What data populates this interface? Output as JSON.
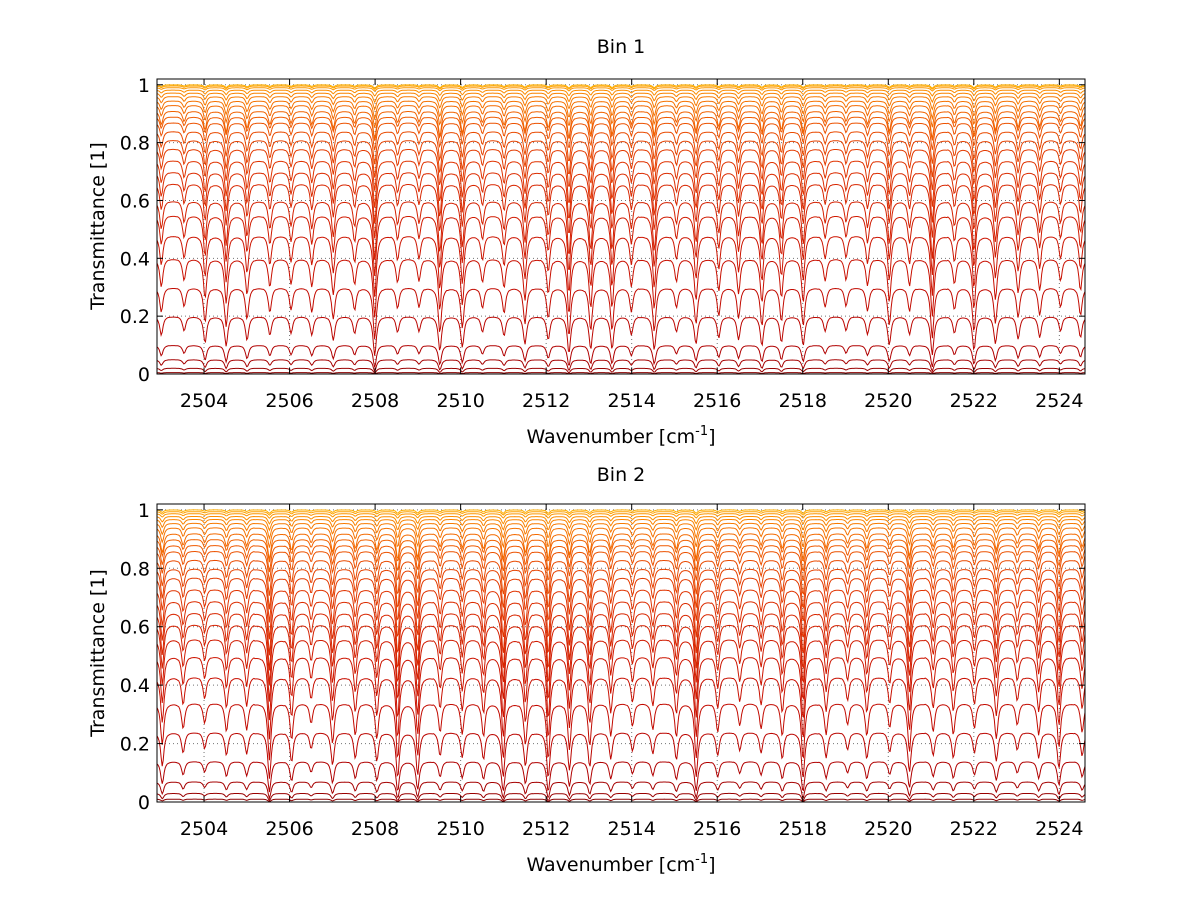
{
  "chart_data": [
    {
      "type": "line",
      "title": "Bin 1",
      "xlabel": "Wavenumber [cm",
      "xlabel_sup": "-1",
      "xlabel_suffix": "]",
      "ylabel": "Transmittance [1]",
      "xlim": [
        2502.9,
        2524.6
      ],
      "ylim": [
        0,
        1.02
      ],
      "xticks": [
        2504,
        2506,
        2508,
        2510,
        2512,
        2514,
        2516,
        2518,
        2520,
        2522,
        2524
      ],
      "yticks": [
        0,
        0.2,
        0.4,
        0.6,
        0.8,
        1
      ],
      "ytick_labels": [
        "0",
        "0.2",
        "0.4",
        "0.6",
        "0.8",
        "1"
      ],
      "grid": true,
      "line_spacing_cm-1": 0.5,
      "series_baselines": [
        0.0,
        0.005,
        0.02,
        0.05,
        0.1,
        0.2,
        0.3,
        0.4,
        0.48,
        0.55,
        0.6,
        0.66,
        0.7,
        0.74,
        0.78,
        0.81,
        0.84,
        0.87,
        0.89,
        0.91,
        0.93,
        0.945,
        0.96,
        0.972,
        0.982,
        0.99,
        0.996,
        1.0
      ],
      "series_colors": [
        "#7a0000",
        "#8a0000",
        "#990000",
        "#a50000",
        "#b00000",
        "#bb0500",
        "#c20a00",
        "#c80f00",
        "#cc1400",
        "#d01a00",
        "#d42000",
        "#d82600",
        "#dc2c00",
        "#e03300",
        "#e33a00",
        "#e64200",
        "#e94a00",
        "#ec5200",
        "#ef5a00",
        "#f16200",
        "#f36a00",
        "#f57200",
        "#f77a00",
        "#f98300",
        "#fb8c00",
        "#fc9600",
        "#fda200",
        "#fdae00"
      ]
    },
    {
      "type": "line",
      "title": "Bin 2",
      "xlabel": "Wavenumber [cm",
      "xlabel_sup": "-1",
      "xlabel_suffix": "]",
      "ylabel": "Transmittance [1]",
      "xlim": [
        2502.9,
        2524.6
      ],
      "ylim": [
        0,
        1.02
      ],
      "xticks": [
        2504,
        2506,
        2508,
        2510,
        2512,
        2514,
        2516,
        2518,
        2520,
        2522,
        2524
      ],
      "yticks": [
        0,
        0.2,
        0.4,
        0.6,
        0.8,
        1
      ],
      "ytick_labels": [
        "0",
        "0.2",
        "0.4",
        "0.6",
        "0.8",
        "1"
      ],
      "grid": true,
      "line_spacing_cm-1": 0.5,
      "series_baselines": [
        0.0,
        0.01,
        0.03,
        0.07,
        0.14,
        0.24,
        0.34,
        0.43,
        0.5,
        0.56,
        0.61,
        0.65,
        0.69,
        0.73,
        0.77,
        0.8,
        0.83,
        0.86,
        0.88,
        0.9,
        0.92,
        0.94,
        0.955,
        0.968,
        0.978,
        0.987,
        0.994,
        1.0
      ],
      "series_colors": [
        "#7a0000",
        "#8a0000",
        "#990000",
        "#a50000",
        "#b00000",
        "#bb0500",
        "#c20a00",
        "#c80f00",
        "#cc1400",
        "#d01a00",
        "#d42000",
        "#d82600",
        "#dc2c00",
        "#e03300",
        "#e33a00",
        "#e64200",
        "#e94a00",
        "#ec5200",
        "#ef5a00",
        "#f16200",
        "#f36a00",
        "#f57200",
        "#f77a00",
        "#f98300",
        "#fb8c00",
        "#fc9600",
        "#fda200",
        "#fdae00"
      ]
    }
  ]
}
